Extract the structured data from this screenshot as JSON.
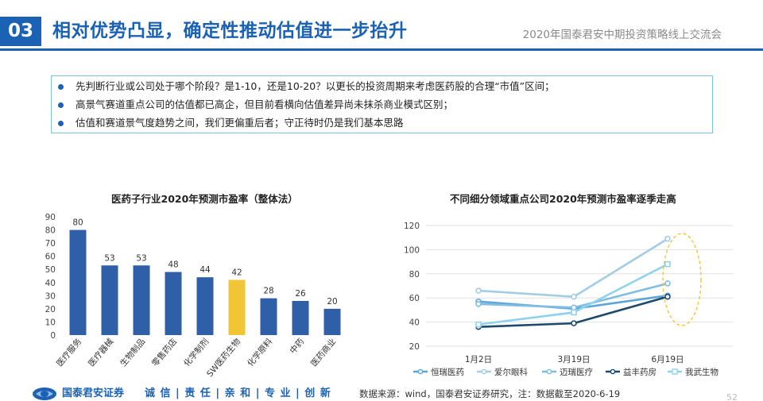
{
  "header": {
    "number": "03",
    "title": "相对优势凸显，确定性推动估值进一步抬升",
    "subtitle": "2020年国泰君安中期投资策略线上交流会"
  },
  "bullets": [
    "先判断行业或公司处于哪个阶段？是1-10，还是10-20？以更长的投资周期来考虑医药股的合理“市值”区间；",
    "高景气赛道重点公司的估值都已高企，但目前看横向估值差异尚未抹杀商业模式区别；",
    "估值和赛道景气度趋势之间，我们更偏重后者；守正待时仍是我们基本思路"
  ],
  "colors": {
    "brand": "#1b62b5",
    "bar": "#2f5fa7",
    "bar_highlight": "#f2c536",
    "highlight_ellipse": "#f2c536"
  },
  "chart_data": [
    {
      "type": "bar",
      "title": "医药子行业2020年预测市盈率（整体法）",
      "categories": [
        "医疗服务",
        "医疗器械",
        "生物制品",
        "零售药店",
        "化学制剂",
        "SW医药生物",
        "化学原料",
        "中药",
        "医药商业"
      ],
      "values": [
        80,
        53,
        53,
        48,
        44,
        42,
        28,
        26,
        20
      ],
      "value_labels": [
        "80",
        "53",
        "53",
        "48",
        "44",
        "42",
        "28",
        "26",
        "20"
      ],
      "highlight_index": 5,
      "ylim": [
        0,
        90
      ],
      "yticks": [
        "0",
        "10",
        "20",
        "30",
        "40",
        "50",
        "60",
        "70",
        "80",
        "90"
      ],
      "grid": false
    },
    {
      "type": "line",
      "title": "不同细分领域重点公司2020年预测市盈率逐季走高",
      "x": [
        "1月2日",
        "3月19日",
        "6月19日"
      ],
      "ylim": [
        20,
        120
      ],
      "yticks": [
        "20",
        "40",
        "60",
        "80",
        "100",
        "120"
      ],
      "grid": true,
      "legend_position": "bottom",
      "series": [
        {
          "name": "恒瑞医药",
          "values": [
            57,
            51,
            62
          ],
          "color": "#5aa6d8",
          "marker": "circle",
          "width": 2.6
        },
        {
          "name": "爱尔眼科",
          "values": [
            66,
            61,
            109
          ],
          "color": "#a4cde3",
          "marker": "circle",
          "width": 2.6
        },
        {
          "name": "迈瑞医疗",
          "values": [
            55,
            52,
            72
          ],
          "color": "#7fbde3",
          "marker": "circle",
          "width": 2.6
        },
        {
          "name": "益丰药房",
          "values": [
            36,
            39,
            61
          ],
          "color": "#1c4a6e",
          "marker": "circle",
          "width": 2.6
        },
        {
          "name": "我武生物",
          "values": [
            38,
            48,
            88
          ],
          "color": "#8fd2ee",
          "marker": "square",
          "width": 2.6
        }
      ]
    }
  ],
  "footer": {
    "company": "国泰君安证券",
    "slogan": "诚 信 | 责 任 | 亲 和 | 专 业 | 创 新",
    "source": "数据来源：wind，国泰君安证券研究，注：数据截至2020-6-19",
    "page": "52"
  }
}
